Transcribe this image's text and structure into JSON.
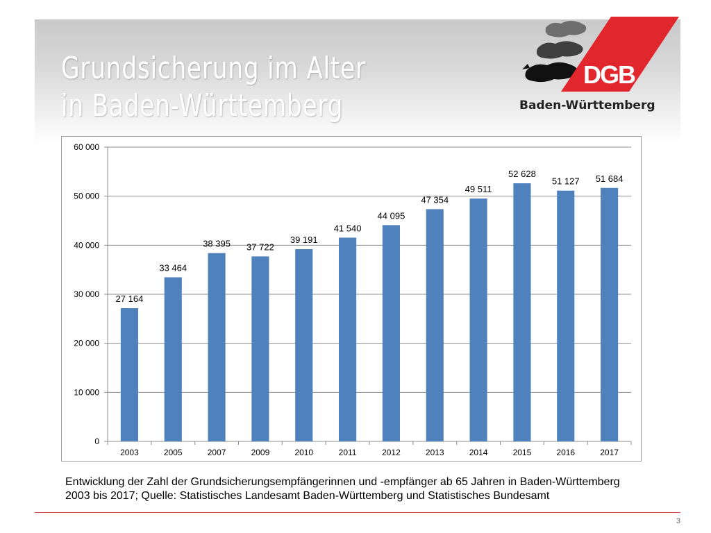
{
  "slide": {
    "title_line1": "Grundsicherung im Alter",
    "title_line2": "in Baden-Württemberg",
    "brand": "DGB",
    "brand_subtitle": "Baden-Württemberg",
    "caption_line1": "Entwicklung der Zahl der Grundsicherungsempfängerinnen und -empfänger ab 65 Jahren in Baden-Württemberg",
    "caption_line2": "2003 bis 2017; Quelle: Statistisches Landesamt Baden-Württemberg und Statistisches Bundesamt",
    "page_number": "3"
  },
  "colors": {
    "bar": "#4f81bd",
    "grid": "#8c8c8c",
    "brand_red": "#e1262d",
    "footer_line": "#d34b4b"
  },
  "chart_data": {
    "type": "bar",
    "categories": [
      "2003",
      "2005",
      "2007",
      "2009",
      "2010",
      "2011",
      "2012",
      "2013",
      "2014",
      "2015",
      "2016",
      "2017"
    ],
    "values": [
      27164,
      33464,
      38395,
      37722,
      39191,
      41540,
      44095,
      47354,
      49511,
      52628,
      51127,
      51684
    ],
    "data_labels": [
      "27 164",
      "33 464",
      "38 395",
      "37 722",
      "39 191",
      "41 540",
      "44 095",
      "47 354",
      "49 511",
      "52 628",
      "51 127",
      "51 684"
    ],
    "ylim": [
      0,
      60000
    ],
    "yticks": [
      0,
      10000,
      20000,
      30000,
      40000,
      50000,
      60000
    ],
    "ytick_labels": [
      "0",
      "10 000",
      "20 000",
      "30 000",
      "40 000",
      "50 000",
      "60 000"
    ],
    "grid": true,
    "legend": false
  }
}
